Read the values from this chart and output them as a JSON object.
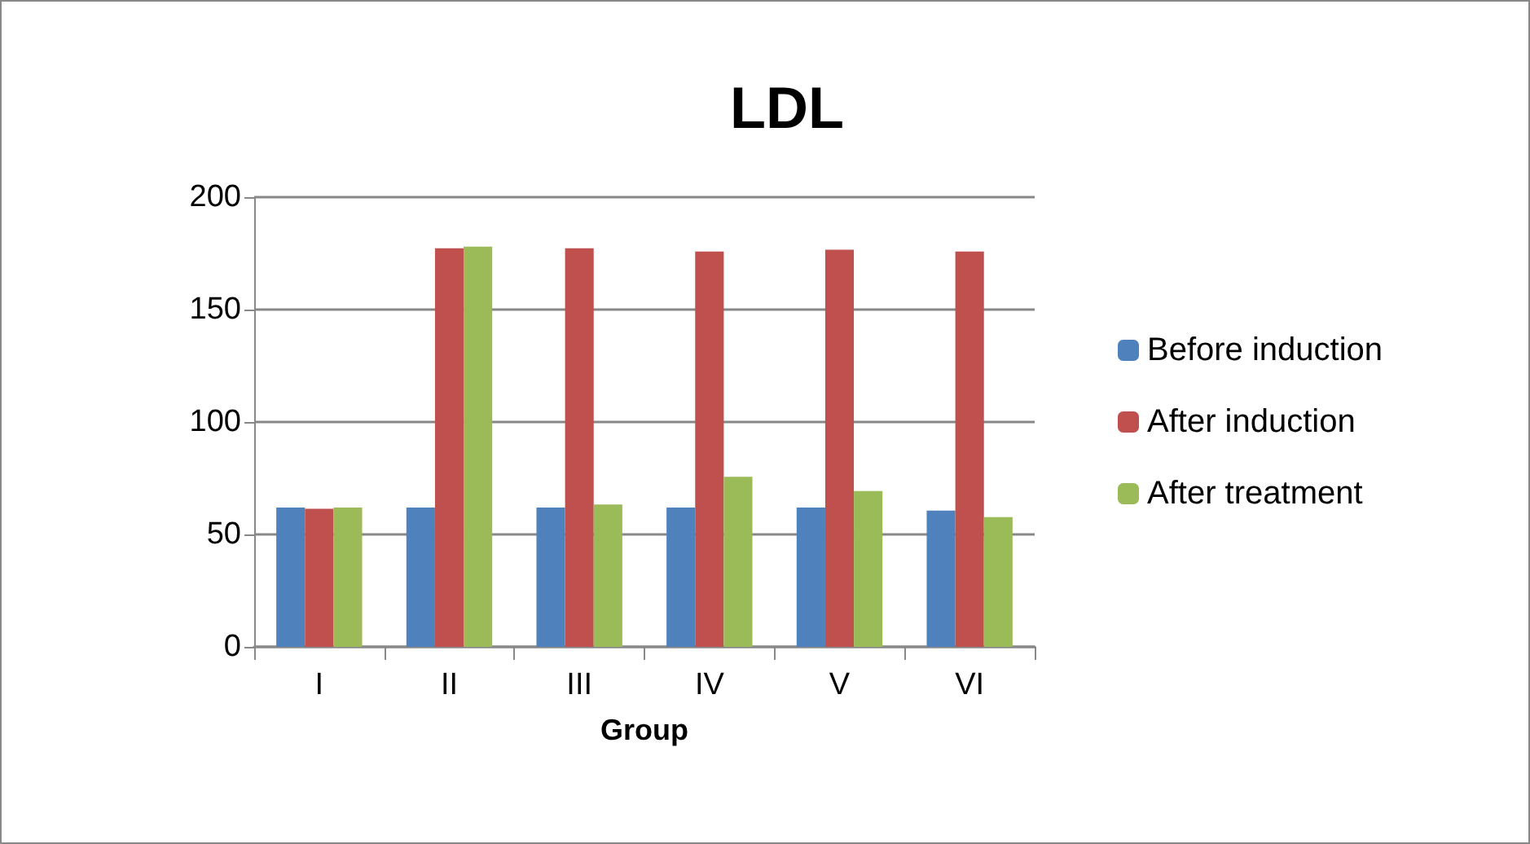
{
  "chart_data": {
    "type": "bar",
    "title": "LDL",
    "xlabel": "Group",
    "categories": [
      "I",
      "II",
      "III",
      "IV",
      "V",
      "VI"
    ],
    "series": [
      {
        "name": "Before induction",
        "color": "#4f81bd",
        "values": [
          62,
          62,
          62,
          62,
          62,
          60.6
        ]
      },
      {
        "name": "After induction",
        "color": "#c0504d",
        "values": [
          61.4,
          177.3,
          177.3,
          175.8,
          176.6,
          175.8
        ]
      },
      {
        "name": "After treatment",
        "color": "#9bbb59",
        "values": [
          62,
          178,
          63.3,
          75.6,
          69.3,
          57.7
        ]
      }
    ],
    "ylim": [
      0,
      200
    ],
    "yticks": [
      0,
      50,
      100,
      150,
      200
    ],
    "grid": "y",
    "legend": "right"
  }
}
